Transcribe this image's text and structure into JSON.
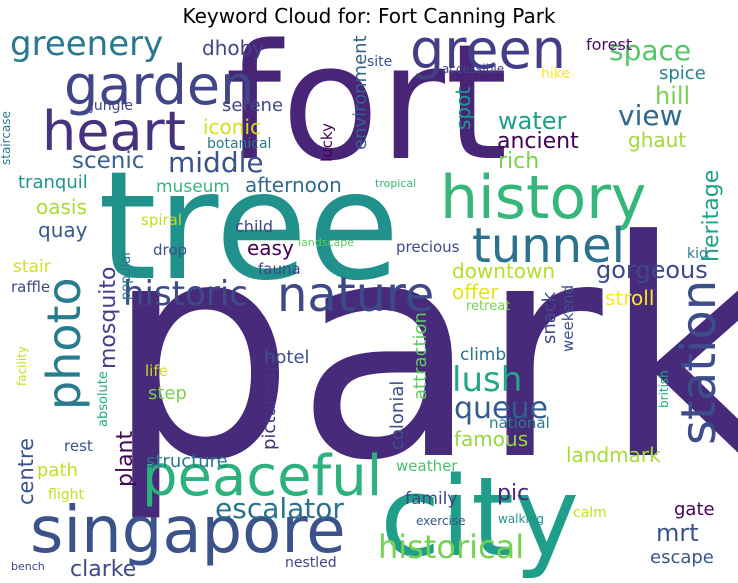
{
  "chart_data": {
    "type": "wordcloud",
    "title": "Keyword Cloud for: Fort Canning Park",
    "words": [
      {
        "text": "park",
        "color": "#472a7a"
      },
      {
        "text": "fort",
        "color": "#482576"
      },
      {
        "text": "tree",
        "color": "#21918c"
      },
      {
        "text": "city",
        "color": "#1f9e89"
      },
      {
        "text": "history",
        "color": "#35b779"
      },
      {
        "text": "singapore",
        "color": "#3b528b"
      },
      {
        "text": "peaceful",
        "color": "#2db27d"
      },
      {
        "text": "garden",
        "color": "#404688"
      },
      {
        "text": "green",
        "color": "#433e85"
      },
      {
        "text": "heart",
        "color": "#46327e"
      },
      {
        "text": "tunnel",
        "color": "#2c728e"
      },
      {
        "text": "nature",
        "color": "#3e4989"
      },
      {
        "text": "station",
        "color": "#3d4d8a"
      },
      {
        "text": "photo",
        "color": "#287c8e"
      },
      {
        "text": "historic",
        "color": "#3e4a89"
      },
      {
        "text": "historical",
        "color": "#75d054"
      },
      {
        "text": "greenery",
        "color": "#2a788e"
      },
      {
        "text": "lush",
        "color": "#22a884"
      },
      {
        "text": "queue",
        "color": "#365c8d"
      },
      {
        "text": "escalator",
        "color": "#2c728e"
      },
      {
        "text": "space",
        "color": "#54c568"
      },
      {
        "text": "middle",
        "color": "#3b528b"
      },
      {
        "text": "view",
        "color": "#31688e"
      },
      {
        "text": "gorgeous",
        "color": "#3e4989"
      },
      {
        "text": "water",
        "color": "#1f9e89"
      },
      {
        "text": "hill",
        "color": "#7ad151"
      },
      {
        "text": "scenic",
        "color": "#355f8d"
      },
      {
        "text": "mrt",
        "color": "#3b528b"
      },
      {
        "text": "heritage",
        "color": "#1fa187"
      },
      {
        "text": "clarke",
        "color": "#3f4788"
      },
      {
        "text": "rich",
        "color": "#7ad151"
      },
      {
        "text": "mosquito",
        "color": "#433e85"
      },
      {
        "text": "ancient",
        "color": "#440154"
      },
      {
        "text": "famous",
        "color": "#95d840"
      },
      {
        "text": "centre",
        "color": "#3b528b"
      },
      {
        "text": "pic",
        "color": "#482878"
      },
      {
        "text": "plant",
        "color": "#450559"
      },
      {
        "text": "downtown",
        "color": "#b5de2b"
      },
      {
        "text": "dhoby",
        "color": "#414487"
      },
      {
        "text": "quay",
        "color": "#38598c"
      },
      {
        "text": "easy",
        "color": "#440154"
      },
      {
        "text": "stroll",
        "color": "#fde725"
      },
      {
        "text": "landmark",
        "color": "#a5db36"
      },
      {
        "text": "afternoon",
        "color": "#31688e"
      },
      {
        "text": "iconic",
        "color": "#d0e11c"
      },
      {
        "text": "oasis",
        "color": "#a8db34"
      },
      {
        "text": "picturesque",
        "color": "#46327e"
      },
      {
        "text": "structure",
        "color": "#2a788e"
      },
      {
        "text": "offer",
        "color": "#e5e419"
      },
      {
        "text": "environment",
        "color": "#33638d"
      },
      {
        "text": "spot",
        "color": "#1f9a8a"
      },
      {
        "text": "colonial",
        "color": "#3d4e8a"
      },
      {
        "text": "attraction",
        "color": "#5ec962"
      },
      {
        "text": "ghaut",
        "color": "#a0da39"
      },
      {
        "text": "spice",
        "color": "#26828e"
      },
      {
        "text": "serene",
        "color": "#404688"
      },
      {
        "text": "tranquil",
        "color": "#1f958b"
      },
      {
        "text": "museum",
        "color": "#35b779"
      },
      {
        "text": "hotel",
        "color": "#3b528b"
      },
      {
        "text": "path",
        "color": "#c2df23"
      },
      {
        "text": "climb",
        "color": "#2c728e"
      },
      {
        "text": "family",
        "color": "#3f4788"
      },
      {
        "text": "step",
        "color": "#7ad151"
      },
      {
        "text": "gate",
        "color": "#440154"
      },
      {
        "text": "escape",
        "color": "#39568c"
      },
      {
        "text": "snack",
        "color": "#3e4989"
      },
      {
        "text": "stair",
        "color": "#d2e21b"
      },
      {
        "text": "forest",
        "color": "#470d60"
      },
      {
        "text": "weekend",
        "color": "#3b528b"
      },
      {
        "text": "child",
        "color": "#3f4788"
      },
      {
        "text": "fauna",
        "color": "#3f4788"
      },
      {
        "text": "drop",
        "color": "#3b528b"
      },
      {
        "text": "precious",
        "color": "#3f4788"
      },
      {
        "text": "national",
        "color": "#2a788e"
      },
      {
        "text": "weather",
        "color": "#4ac16d"
      },
      {
        "text": "rest",
        "color": "#3b528b"
      },
      {
        "text": "raffle",
        "color": "#3f4788"
      },
      {
        "text": "lucky",
        "color": "#440154"
      },
      {
        "text": "botanical",
        "color": "#2a788e"
      },
      {
        "text": "jungle",
        "color": "#3f4788"
      },
      {
        "text": "spiral",
        "color": "#bddf26"
      },
      {
        "text": "life",
        "color": "#d0e11c"
      },
      {
        "text": "hike",
        "color": "#fde725"
      },
      {
        "text": "site",
        "color": "#3b528b"
      },
      {
        "text": "calm",
        "color": "#c8e020"
      },
      {
        "text": "flight",
        "color": "#c2df23"
      },
      {
        "text": "kid",
        "color": "#2a788e"
      },
      {
        "text": "popular",
        "color": "#2a788e"
      },
      {
        "text": "absolute",
        "color": "#22a884"
      },
      {
        "text": "retreat",
        "color": "#7ad151"
      },
      {
        "text": "staircase",
        "color": "#2a788e"
      },
      {
        "text": "facility",
        "color": "#c2df23"
      },
      {
        "text": "british",
        "color": "#22a884"
      },
      {
        "text": "exercise",
        "color": "#3b528b"
      },
      {
        "text": "walking",
        "color": "#21918c"
      },
      {
        "text": "bench",
        "color": "#3f4788"
      },
      {
        "text": "nestled",
        "color": "#404688"
      },
      {
        "text": "accessible",
        "color": "#3f4788"
      },
      {
        "text": "tropical",
        "color": "#35b779"
      },
      {
        "text": "landscape",
        "color": "#5ec962"
      }
    ]
  }
}
